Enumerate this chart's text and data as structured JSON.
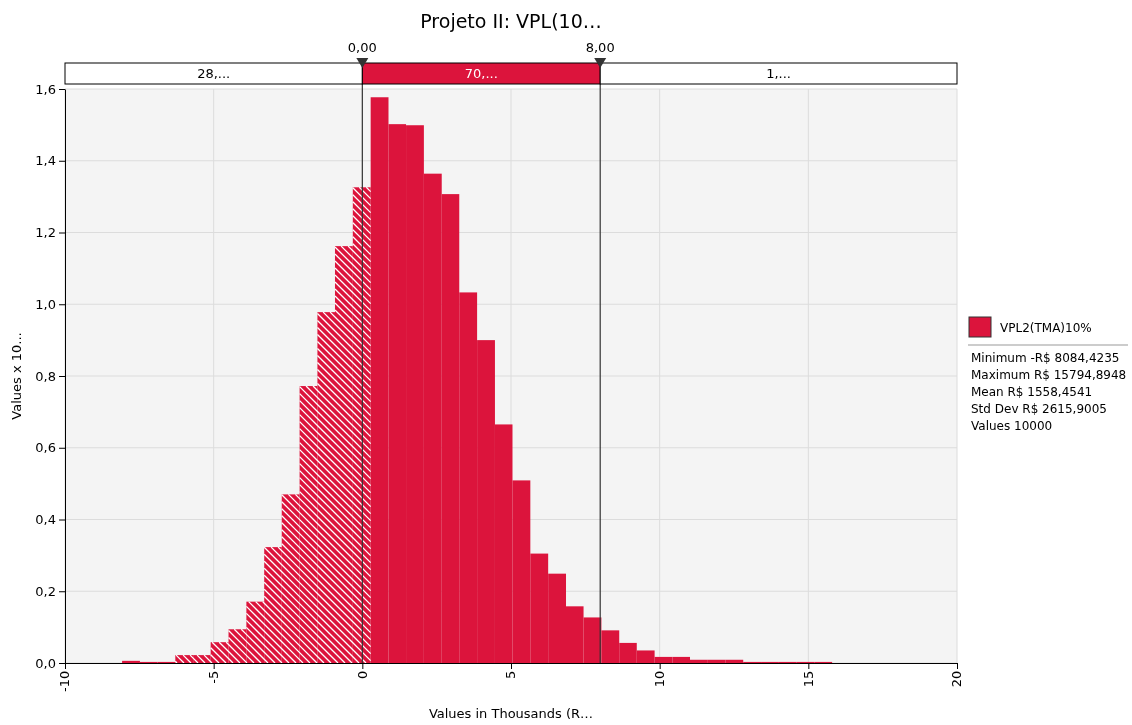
{
  "chart_data": {
    "type": "histogram",
    "title": "Projeto II: VPL(10…",
    "xlabel": "Values in Thousands (R…",
    "ylabel": "Values x 10...",
    "bins": [
      -8.08,
      -7.48,
      -6.89,
      -6.29,
      -5.69,
      -5.1,
      -4.5,
      -3.9,
      -3.3,
      -2.71,
      -2.11,
      -1.51,
      -0.92,
      -0.32,
      0.28,
      0.88,
      1.47,
      2.07,
      2.67,
      3.26,
      3.86,
      4.46,
      5.05,
      5.65,
      6.25,
      6.85,
      7.44,
      8.04,
      8.64,
      9.23,
      9.83,
      10.43,
      11.02,
      11.62,
      12.22,
      12.81,
      13.41,
      14.01,
      14.61,
      15.2,
      15.8
    ],
    "series": [
      {
        "name": "VPL2(TMA)10%",
        "color": "#dc143c",
        "values": [
          0.006,
          0.003,
          0.003,
          0.022,
          0.022,
          0.058,
          0.094,
          0.171,
          0.323,
          0.47,
          0.772,
          0.978,
          1.162,
          1.326,
          1.577,
          1.502,
          1.499,
          1.364,
          1.307,
          1.033,
          0.9,
          0.665,
          0.509,
          0.305,
          0.249,
          0.158,
          0.127,
          0.091,
          0.056,
          0.035,
          0.017,
          0.017,
          0.009,
          0.009,
          0.009,
          0.003,
          0.003,
          0.003,
          0.003,
          0.003
        ]
      }
    ],
    "xlim": [
      -10,
      20
    ],
    "xticks": [
      -10,
      -5,
      0,
      5,
      10,
      15,
      20
    ],
    "ylim": [
      0,
      1.6
    ],
    "yticks": [
      {
        "value": 0,
        "label": "0,0"
      },
      {
        "value": 0.2,
        "label": "0,2"
      },
      {
        "value": 0.4,
        "label": "0,4"
      },
      {
        "value": 0.6,
        "label": "0,6"
      },
      {
        "value": 0.8,
        "label": "0,8"
      },
      {
        "value": 1,
        "label": "1,0"
      },
      {
        "value": 1.2,
        "label": "1,2"
      },
      {
        "value": 1.4,
        "label": "1,4"
      },
      {
        "value": 1.6,
        "label": "1,6"
      }
    ],
    "grid": true,
    "legend": "right",
    "ref_lines": [
      {
        "axis": "x",
        "value": 0,
        "label": "0,00",
        "color": "#333333"
      },
      {
        "axis": "x",
        "value": 8,
        "label": "8,00",
        "color": "#333333"
      }
    ],
    "annotations": [
      "28,...",
      "70,...",
      "1,...",
      "Minimum -R$ 8084,4235",
      "Maximum R$ 15794,8948",
      "Mean R$ 1558,4541",
      "Std Dev R$ 2615,9005",
      "Values 10000"
    ]
  }
}
